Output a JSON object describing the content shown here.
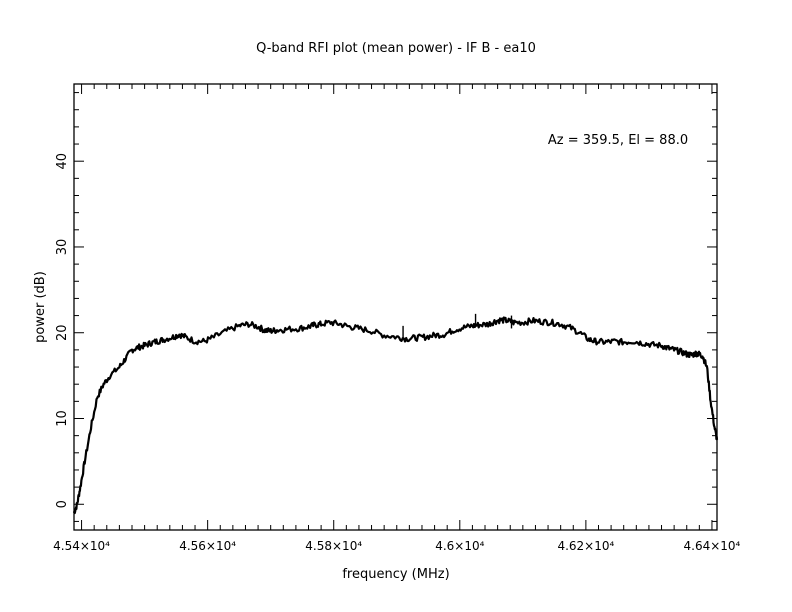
{
  "chart_data": {
    "type": "line",
    "title": "Q-band RFI plot (mean power) - IF B - ea10",
    "xlabel": "frequency (MHz)",
    "ylabel": "power (dB)",
    "annotation": "Az = 359.5, El = 88.0",
    "xlim": [
      45388,
      46408
    ],
    "ylim": [
      -3,
      49
    ],
    "xticks": [
      {
        "value": 45400,
        "label": "4.54×10⁴"
      },
      {
        "value": 45600,
        "label": "4.56×10⁴"
      },
      {
        "value": 45800,
        "label": "4.58×10⁴"
      },
      {
        "value": 46000,
        "label": "4.6×10⁴"
      },
      {
        "value": 46200,
        "label": "4.62×10⁴"
      },
      {
        "value": 46400,
        "label": "4.64×10⁴"
      }
    ],
    "yticks": [
      {
        "value": 0,
        "label": "0"
      },
      {
        "value": 10,
        "label": "10"
      },
      {
        "value": 20,
        "label": "20"
      },
      {
        "value": 30,
        "label": "30"
      },
      {
        "value": 40,
        "label": "40"
      }
    ],
    "grid": false,
    "line_color": "#000000",
    "series": [
      {
        "x": [
          45388,
          45393,
          45398,
          45405,
          45415,
          45425,
          45435,
          45445,
          45460,
          45470,
          45480,
          45490,
          45500,
          45510,
          45520,
          45530,
          45545,
          45555,
          45565,
          45580,
          45595,
          45610,
          45630,
          45650,
          45665,
          45680,
          45690,
          45700,
          45710,
          45725,
          45745,
          45760,
          45770,
          45780,
          45795,
          45810,
          45825,
          45840,
          45860,
          45880,
          45900,
          45915,
          45930,
          45945,
          45960,
          45975,
          45990,
          46005,
          46020,
          46030,
          46045,
          46055,
          46065,
          46075,
          46085,
          46100,
          46115,
          46130,
          46145,
          46160,
          46175,
          46190,
          46205,
          46215,
          46230,
          46245,
          46260,
          46275,
          46290,
          46305,
          46320,
          46330,
          46340,
          46350,
          46360,
          46368,
          46375,
          46380,
          46385,
          46392,
          46398,
          46404,
          46408
        ],
        "y": [
          -1,
          0,
          2,
          5,
          9,
          12.5,
          14,
          15,
          16,
          17,
          18,
          18.3,
          18.5,
          18.8,
          19,
          19.2,
          19.5,
          19.8,
          19.5,
          19,
          19,
          19.5,
          20.2,
          20.8,
          21,
          20.7,
          20.3,
          20.2,
          20.3,
          20.4,
          20.5,
          20.7,
          20.9,
          21,
          21.2,
          21,
          20.7,
          20.5,
          20.2,
          19.7,
          19.5,
          19.3,
          19.4,
          19.5,
          19.7,
          19.8,
          20.3,
          20.6,
          20.8,
          20.9,
          21.0,
          21.3,
          21.5,
          21.4,
          21.2,
          21.2,
          21.4,
          21.3,
          21.2,
          21.0,
          20.6,
          20.0,
          19.2,
          19.0,
          18.9,
          19.0,
          18.9,
          19.0,
          18.8,
          18.6,
          18.5,
          18.2,
          18.0,
          17.8,
          17.5,
          17.4,
          17.6,
          17.5,
          17.3,
          16.0,
          12.0,
          9.0,
          7.5
        ]
      }
    ],
    "spikes": [
      {
        "x": 45910,
        "y": 20.8
      },
      {
        "x": 46025,
        "y": 22.2
      },
      {
        "x": 46082,
        "y": 22.0
      }
    ]
  }
}
